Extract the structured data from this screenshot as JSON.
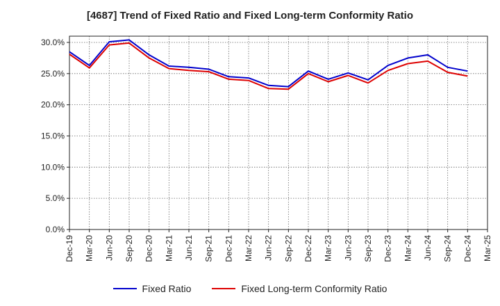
{
  "chart_data": {
    "type": "line",
    "title": "[4687]  Trend of Fixed Ratio and Fixed Long-term Conformity Ratio",
    "xlabel": "",
    "ylabel": "",
    "x": [
      "Dec-19",
      "Mar-20",
      "Jun-20",
      "Sep-20",
      "Dec-20",
      "Mar-21",
      "Jun-21",
      "Sep-21",
      "Dec-21",
      "Mar-22",
      "Jun-22",
      "Sep-22",
      "Dec-22",
      "Mar-23",
      "Jun-23",
      "Sep-23",
      "Dec-23",
      "Mar-24",
      "Jun-24",
      "Sep-24",
      "Dec-24",
      "Mar-25"
    ],
    "yticks": [
      "0.0%",
      "5.0%",
      "10.0%",
      "15.0%",
      "20.0%",
      "25.0%",
      "30.0%"
    ],
    "ylim": [
      0,
      31
    ],
    "grid": true,
    "legend_position": "bottom",
    "series": [
      {
        "name": "Fixed Ratio",
        "color": "#0000cc",
        "values": [
          28.5,
          26.3,
          30.1,
          30.4,
          28.0,
          26.2,
          26.0,
          25.7,
          24.5,
          24.3,
          23.1,
          22.9,
          25.4,
          24.1,
          25.1,
          24.0,
          26.3,
          27.5,
          28.0,
          26.0,
          25.4,
          null
        ]
      },
      {
        "name": "Fixed Long-term Conformity Ratio",
        "color": "#dd0000",
        "values": [
          28.1,
          25.9,
          29.6,
          29.9,
          27.5,
          25.8,
          25.5,
          25.3,
          24.1,
          23.9,
          22.6,
          22.5,
          25.0,
          23.7,
          24.7,
          23.5,
          25.5,
          26.6,
          27.0,
          25.2,
          24.6,
          null
        ]
      }
    ]
  }
}
